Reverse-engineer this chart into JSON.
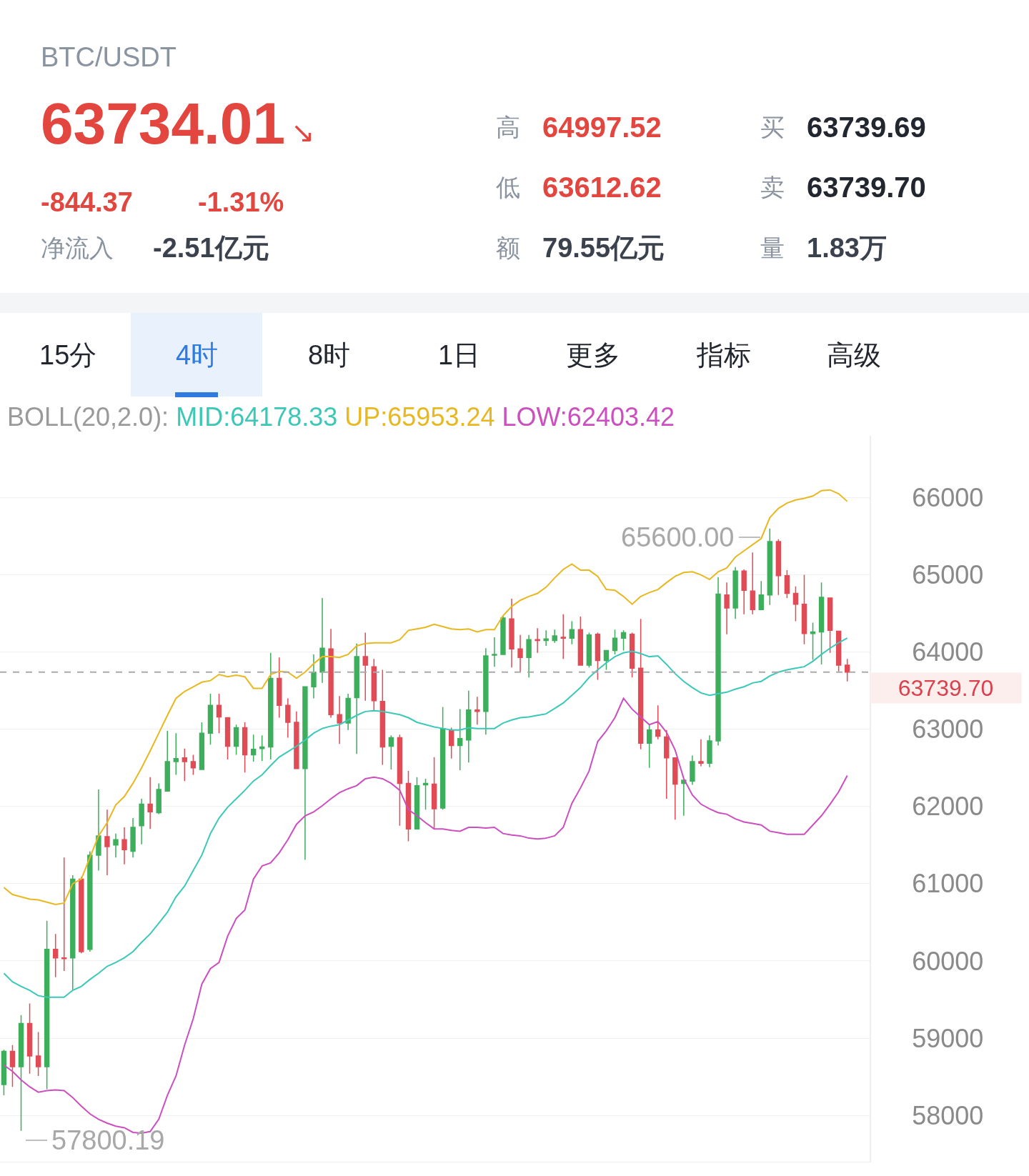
{
  "chart_data": {
    "type": "candlestick",
    "title": "BTC/USDT",
    "annotations": [
      "63734.01",
      "↘",
      "-844.37",
      "-1.31%",
      "净流入",
      "-2.51亿元",
      "高",
      "64997.52",
      "低",
      "63612.62",
      "额",
      "79.55亿元",
      "买",
      "63739.69",
      "卖",
      "63739.70",
      "量",
      "1.83万",
      "15分",
      "4时",
      "8时",
      "1日",
      "更多",
      "指标",
      "高级",
      "65600.00",
      "57800.19"
    ],
    "categories": [
      null,
      null,
      null,
      null,
      null,
      null,
      null,
      null,
      null,
      null,
      null,
      null,
      null,
      null,
      null,
      null,
      null,
      null,
      null,
      null,
      null,
      null,
      null,
      null,
      null,
      null,
      null,
      null,
      null,
      null,
      null,
      null,
      null,
      null,
      null,
      null,
      null,
      null,
      null,
      null,
      null,
      null,
      null,
      null,
      null,
      null,
      null,
      null,
      null,
      null,
      null,
      null,
      null,
      null,
      null,
      null,
      null,
      null,
      null,
      null,
      null,
      null,
      null,
      null,
      null,
      null,
      null,
      null,
      null,
      null,
      null,
      null,
      null,
      null,
      null,
      null,
      null,
      null,
      null,
      null,
      null,
      null,
      null,
      null,
      null,
      null,
      null,
      null,
      null,
      null,
      null,
      null,
      null,
      null,
      null,
      null,
      null,
      null,
      null
    ],
    "ohlc": [
      [
        58400,
        58850,
        58260,
        58830
      ],
      [
        58830,
        58910,
        58370,
        58630
      ],
      [
        58630,
        59300,
        57800.19,
        59190
      ],
      [
        59190,
        59450,
        58540,
        58770
      ],
      [
        58770,
        59080,
        58510,
        58630
      ],
      [
        58630,
        60520,
        58340,
        60150
      ],
      [
        60150,
        60350,
        59790,
        60040
      ],
      [
        60040,
        61340,
        59870,
        60030
      ],
      [
        60040,
        61110,
        59620,
        61060
      ],
      [
        61060,
        61090,
        60100,
        60120
      ],
      [
        60150,
        61420,
        60120,
        61370
      ],
      [
        61370,
        62220,
        61170,
        61620
      ],
      [
        61610,
        61960,
        61110,
        61480
      ],
      [
        61500,
        61650,
        61340,
        61570
      ],
      [
        61570,
        61730,
        61250,
        61440
      ],
      [
        61420,
        61850,
        61340,
        61730
      ],
      [
        61750,
        62100,
        61510,
        62030
      ],
      [
        62030,
        62380,
        61710,
        61930
      ],
      [
        61920,
        62300,
        61900,
        62220
      ],
      [
        62200,
        62980,
        62190,
        62580
      ],
      [
        62580,
        62950,
        62410,
        62620
      ],
      [
        62630,
        62750,
        62330,
        62580
      ],
      [
        62580,
        62670,
        62410,
        62500
      ],
      [
        62480,
        63090,
        62480,
        62950
      ],
      [
        62950,
        63460,
        62800,
        63310
      ],
      [
        63310,
        63460,
        62950,
        63160
      ],
      [
        63150,
        63150,
        62610,
        62780
      ],
      [
        62780,
        63060,
        62670,
        63020
      ],
      [
        63020,
        63090,
        62440,
        62670
      ],
      [
        62670,
        62930,
        62580,
        62740
      ],
      [
        62750,
        62920,
        62590,
        62770
      ],
      [
        62770,
        63990,
        62610,
        63660
      ],
      [
        63660,
        63930,
        63150,
        63310
      ],
      [
        63310,
        63400,
        62890,
        63090
      ],
      [
        63090,
        63230,
        62490,
        62490
      ],
      [
        62490,
        63550,
        61310,
        63550
      ],
      [
        63550,
        63970,
        63400,
        63740
      ],
      [
        63740,
        64700,
        63600,
        64050
      ],
      [
        64040,
        64300,
        63150,
        63190
      ],
      [
        63190,
        63430,
        62810,
        63080
      ],
      [
        63080,
        63460,
        62990,
        63400
      ],
      [
        63410,
        64110,
        62680,
        63940
      ],
      [
        63940,
        64250,
        63370,
        63830
      ],
      [
        63810,
        63910,
        63230,
        63370
      ],
      [
        63360,
        63770,
        62540,
        62770
      ],
      [
        62780,
        62920,
        62480,
        62890
      ],
      [
        62890,
        62930,
        61750,
        62300
      ],
      [
        62300,
        62460,
        61550,
        61710
      ],
      [
        61710,
        62380,
        61710,
        62270
      ],
      [
        62280,
        62360,
        61960,
        62300
      ],
      [
        62290,
        62640,
        61710,
        61970
      ],
      [
        61980,
        63290,
        61960,
        63010
      ],
      [
        62990,
        63020,
        62620,
        62790
      ],
      [
        62790,
        63260,
        62470,
        62880
      ],
      [
        62860,
        63500,
        62570,
        63250
      ],
      [
        63250,
        63420,
        63060,
        63230
      ],
      [
        63230,
        64050,
        62930,
        63950
      ],
      [
        63960,
        64190,
        63810,
        63970
      ],
      [
        63970,
        64470,
        63970,
        64440
      ],
      [
        64430,
        64690,
        63800,
        64040
      ],
      [
        64040,
        64220,
        63740,
        63930
      ],
      [
        63930,
        64220,
        63670,
        64160
      ],
      [
        64160,
        64310,
        63990,
        64150
      ],
      [
        64150,
        64280,
        64080,
        64170
      ],
      [
        64150,
        64290,
        64120,
        64210
      ],
      [
        64190,
        64490,
        63910,
        64180
      ],
      [
        64180,
        64400,
        64100,
        64290
      ],
      [
        64290,
        64460,
        63830,
        63830
      ],
      [
        63830,
        64250,
        63800,
        64220
      ],
      [
        64230,
        64250,
        63640,
        63890
      ],
      [
        63890,
        64020,
        63770,
        64020
      ],
      [
        64020,
        64290,
        63970,
        64180
      ],
      [
        64180,
        64280,
        64020,
        64250
      ],
      [
        64230,
        64250,
        63670,
        63790
      ],
      [
        63790,
        64430,
        62740,
        62820
      ],
      [
        62820,
        63060,
        62500,
        62990
      ],
      [
        62990,
        63310,
        62870,
        62910
      ],
      [
        62900,
        62990,
        62100,
        62630
      ],
      [
        62630,
        62630,
        61830,
        62290
      ],
      [
        62300,
        62340,
        61880,
        62340
      ],
      [
        62330,
        62660,
        62280,
        62580
      ],
      [
        62580,
        62870,
        62520,
        62560
      ],
      [
        62560,
        62920,
        62510,
        62850
      ],
      [
        62850,
        64970,
        62790,
        64750
      ],
      [
        64740,
        64900,
        64230,
        64570
      ],
      [
        64570,
        65100,
        64430,
        65050
      ],
      [
        65050,
        65070,
        64490,
        64800
      ],
      [
        64790,
        65290,
        64490,
        64550
      ],
      [
        64550,
        64920,
        64550,
        64740
      ],
      [
        64740,
        65600,
        64610,
        65430
      ],
      [
        65430,
        65460,
        64740,
        64990
      ],
      [
        64990,
        65060,
        64700,
        64760
      ],
      [
        64760,
        64850,
        64400,
        64620
      ],
      [
        64620,
        65000,
        64100,
        64240
      ],
      [
        64240,
        64380,
        63900,
        64260
      ],
      [
        64260,
        64900,
        63840,
        64710
      ],
      [
        64700,
        64700,
        63990,
        64280
      ],
      [
        64270,
        64270,
        63750,
        63830
      ],
      [
        63830,
        63910,
        63620,
        63740
      ]
    ],
    "colors": [
      "#3dae5c",
      "#e04b55",
      "#3dae5c",
      "#e04b55",
      "#e04b55",
      "#3dae5c",
      "#e04b55",
      "#e04b55",
      "#3dae5c",
      "#e04b55",
      "#3dae5c",
      "#3dae5c",
      "#e04b55",
      "#3dae5c",
      "#e04b55",
      "#3dae5c",
      "#3dae5c",
      "#e04b55",
      "#3dae5c",
      "#3dae5c",
      "#3dae5c",
      "#e04b55",
      "#e04b55",
      "#3dae5c",
      "#3dae5c",
      "#e04b55",
      "#e04b55",
      "#3dae5c",
      "#e04b55",
      "#3dae5c",
      "#3dae5c",
      "#3dae5c",
      "#e04b55",
      "#e04b55",
      "#e04b55",
      "#3dae5c",
      "#3dae5c",
      "#3dae5c",
      "#e04b55",
      "#e04b55",
      "#3dae5c",
      "#3dae5c",
      "#e04b55",
      "#e04b55",
      "#e04b55",
      "#3dae5c",
      "#e04b55",
      "#e04b55",
      "#3dae5c",
      "#3dae5c",
      "#e04b55",
      "#3dae5c",
      "#e04b55",
      "#3dae5c",
      "#3dae5c",
      "#e04b55",
      "#3dae5c",
      "#3dae5c",
      "#3dae5c",
      "#e04b55",
      "#e04b55",
      "#3dae5c",
      "#e04b55",
      "#3dae5c",
      "#3dae5c",
      "#e04b55",
      "#3dae5c",
      "#e04b55",
      "#3dae5c",
      "#e04b55",
      "#3dae5c",
      "#3dae5c",
      "#3dae5c",
      "#e04b55",
      "#e04b55",
      "#3dae5c",
      "#e04b55",
      "#e04b55",
      "#e04b55",
      "#3dae5c",
      "#3dae5c",
      "#e04b55",
      "#3dae5c",
      "#3dae5c",
      "#e04b55",
      "#3dae5c",
      "#e04b55",
      "#e04b55",
      "#3dae5c",
      "#3dae5c",
      "#e04b55",
      "#e04b55",
      "#e04b55",
      "#e04b55",
      "#3dae5c",
      "#3dae5c",
      "#e04b55",
      "#e04b55",
      "#e04b55"
    ],
    "legend_title": "BOLL(20,2.0):",
    "series": [
      {
        "name": "MID:64178.33",
        "type": "line",
        "color": "#3cc8b8",
        "values": [
          59840,
          59730,
          59670,
          59620,
          59550,
          59530,
          59530,
          59530,
          59620,
          59670,
          59760,
          59840,
          59930,
          59980,
          60040,
          60120,
          60240,
          60350,
          60490,
          60630,
          60830,
          60970,
          61170,
          61370,
          61650,
          61850,
          61990,
          62100,
          62210,
          62330,
          62410,
          62530,
          62640,
          62710,
          62780,
          62860,
          62950,
          63010,
          63040,
          63060,
          63120,
          63180,
          63230,
          63240,
          63230,
          63210,
          63190,
          63150,
          63090,
          63060,
          63030,
          63010,
          62990,
          62990,
          63020,
          63010,
          63010,
          63010,
          63080,
          63120,
          63150,
          63160,
          63180,
          63200,
          63270,
          63340,
          63440,
          63540,
          63670,
          63770,
          63860,
          63940,
          63990,
          64010,
          63980,
          63940,
          63950,
          63840,
          63720,
          63620,
          63540,
          63470,
          63440,
          63460,
          63480,
          63520,
          63550,
          63600,
          63620,
          63690,
          63740,
          63770,
          63790,
          63810,
          63880,
          63970,
          64050,
          64120,
          64180
        ]
      },
      {
        "name": "UP:65953.24",
        "type": "line",
        "color": "#e8b820",
        "values": [
          60950,
          60860,
          60830,
          60800,
          60790,
          60760,
          60730,
          60750,
          61000,
          61060,
          61340,
          61620,
          61790,
          62020,
          62130,
          62300,
          62500,
          62720,
          62950,
          63180,
          63400,
          63490,
          63550,
          63610,
          63630,
          63710,
          63680,
          63700,
          63680,
          63530,
          63530,
          63710,
          63750,
          63740,
          63660,
          63740,
          63850,
          63940,
          63940,
          63930,
          63970,
          64080,
          64110,
          64120,
          64120,
          64120,
          64160,
          64280,
          64300,
          64320,
          64360,
          64330,
          64300,
          64290,
          64300,
          64260,
          64290,
          64290,
          64470,
          64590,
          64670,
          64720,
          64760,
          64840,
          64960,
          65070,
          65140,
          65060,
          65060,
          64980,
          64810,
          64800,
          64720,
          64620,
          64720,
          64770,
          64810,
          64900,
          64980,
          65030,
          65040,
          65000,
          64940,
          65040,
          65090,
          65230,
          65310,
          65390,
          65470,
          65740,
          65860,
          65930,
          65970,
          65990,
          66020,
          66090,
          66100,
          66050,
          65950
        ]
      },
      {
        "name": "LOW:62403.42",
        "type": "line",
        "color": "#cc4fbf",
        "values": [
          58650,
          58570,
          58460,
          58370,
          58300,
          58320,
          58330,
          58320,
          58230,
          58120,
          58020,
          57950,
          57900,
          57860,
          57840,
          57780,
          57770,
          57790,
          57950,
          58260,
          58510,
          58910,
          59250,
          59700,
          59900,
          59980,
          60320,
          60550,
          60660,
          61060,
          61230,
          61270,
          61400,
          61570,
          61770,
          61880,
          61930,
          62010,
          62100,
          62180,
          62230,
          62270,
          62360,
          62380,
          62360,
          62300,
          62210,
          61960,
          61880,
          61790,
          61710,
          61710,
          61690,
          61680,
          61730,
          61730,
          61720,
          61730,
          61650,
          61630,
          61620,
          61590,
          61580,
          61590,
          61620,
          61730,
          62040,
          62240,
          62460,
          62840,
          62980,
          63150,
          63400,
          63260,
          63160,
          63060,
          63100,
          62960,
          62730,
          62360,
          62150,
          62030,
          61970,
          61920,
          61900,
          61840,
          61800,
          61780,
          61760,
          61680,
          61660,
          61640,
          61640,
          61640,
          61760,
          61880,
          62030,
          62190,
          62400
        ]
      }
    ],
    "ref_lines": [
      {
        "axis": "y",
        "value": 63739.7,
        "label": "63739.70",
        "color": "#aaaaaa",
        "line_style": "dashed"
      }
    ],
    "ylim": [
      57400,
      66800
    ],
    "yticks": [
      58000,
      59000,
      60000,
      61000,
      62000,
      63000,
      64000,
      65000,
      66000
    ],
    "grid": "y",
    "legend": "top",
    "tick_labels": "y"
  }
}
